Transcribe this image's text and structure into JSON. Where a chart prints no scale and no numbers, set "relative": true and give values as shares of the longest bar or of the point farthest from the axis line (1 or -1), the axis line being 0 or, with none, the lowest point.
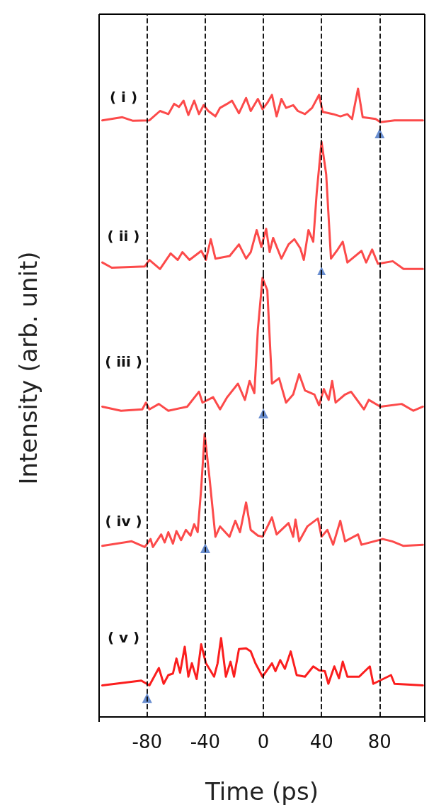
{
  "chart_data": [
    {
      "type": "line",
      "relative": true,
      "xlim": [
        -113,
        111
      ],
      "xticks": [
        -80,
        -40,
        0,
        40,
        80
      ],
      "tick_labels": false,
      "line_style": "solid",
      "ref_lines": [
        {
          "axis": "x",
          "value": -80,
          "color": "#000000",
          "line_style": "dashed"
        },
        {
          "axis": "x",
          "value": -40,
          "color": "#000000",
          "line_style": "dashed"
        },
        {
          "axis": "x",
          "value": 0,
          "color": "#000000",
          "line_style": "dashed"
        },
        {
          "axis": "x",
          "value": 40,
          "color": "#000000",
          "line_style": "dashed"
        },
        {
          "axis": "x",
          "value": 80,
          "color": "#000000",
          "line_style": "dashed"
        }
      ],
      "series": [
        {
          "name": "( i )",
          "color": "#fc4a4a",
          "x": [
            -110.8,
            -97,
            -89.7,
            -78.4,
            -71.1,
            -65.4,
            -61.4,
            -58.1,
            -54.9,
            -51.6,
            -47.6,
            -44.3,
            -41.1,
            -37.9,
            -33,
            -29.8,
            -24.9,
            -21.6,
            -16.8,
            -11.9,
            -8.7,
            -3.8,
            -0.6,
            2.7,
            5.9,
            9.1,
            12.4,
            15.6,
            20.5,
            23.7,
            28.6,
            33.5,
            38.3,
            40.8,
            48,
            53,
            57.8,
            61,
            65.1,
            68.3,
            77.2,
            80.5,
            90.2,
            109.7
          ],
          "values": [
            0.29,
            0.36,
            0.28,
            0.29,
            0.5,
            0.43,
            0.66,
            0.59,
            0.73,
            0.41,
            0.73,
            0.43,
            0.63,
            0.5,
            0.38,
            0.57,
            0.66,
            0.73,
            0.45,
            0.79,
            0.5,
            0.77,
            0.54,
            0.68,
            0.86,
            0.38,
            0.77,
            0.57,
            0.63,
            0.5,
            0.43,
            0.57,
            0.86,
            0.48,
            0.43,
            0.38,
            0.43,
            0.32,
            1,
            0.36,
            0.32,
            0.25,
            0.29,
            0.29
          ]
        },
        {
          "type": "scatter",
          "marker": "triangle",
          "color": "#4472c4",
          "x": [
            80
          ],
          "values": [
            0
          ]
        }
      ]
    },
    {
      "type": "line",
      "relative": true,
      "xlim": [
        -113,
        111
      ],
      "xticks": [
        -80,
        -40,
        0,
        40,
        80
      ],
      "tick_labels": false,
      "line_style": "solid",
      "ref_lines": [
        {
          "axis": "x",
          "value": -80,
          "color": "#000000",
          "line_style": "dashed"
        },
        {
          "axis": "x",
          "value": -40,
          "color": "#000000",
          "line_style": "dashed"
        },
        {
          "axis": "x",
          "value": 0,
          "color": "#000000",
          "line_style": "dashed"
        },
        {
          "axis": "x",
          "value": 40,
          "color": "#000000",
          "line_style": "dashed"
        },
        {
          "axis": "x",
          "value": 80,
          "color": "#000000",
          "line_style": "dashed"
        }
      ],
      "series": [
        {
          "name": "( ii )",
          "color": "#fc4a4a",
          "x": [
            -110.8,
            -104.3,
            -81.6,
            -78.4,
            -71.1,
            -63.8,
            -58.9,
            -55.7,
            -50.8,
            -42.7,
            -39.5,
            -36.2,
            -33,
            -23.2,
            -16.8,
            -11.9,
            -8.7,
            -4.6,
            -1.4,
            1.9,
            4.3,
            6.7,
            12.4,
            17.3,
            21.3,
            25.4,
            27.8,
            31,
            34.3,
            36.7,
            40,
            43.2,
            46.5,
            50.5,
            54.6,
            57.8,
            67.5,
            70.7,
            74.8,
            78.8,
            89,
            96.4,
            109.7
          ],
          "values": [
            0.07,
            0.03,
            0.04,
            0.09,
            0.02,
            0.14,
            0.09,
            0.15,
            0.09,
            0.16,
            0.09,
            0.25,
            0.1,
            0.12,
            0.21,
            0.1,
            0.15,
            0.32,
            0.19,
            0.33,
            0.15,
            0.26,
            0.1,
            0.21,
            0.25,
            0.18,
            0.09,
            0.32,
            0.23,
            0.61,
            1,
            0.75,
            0.1,
            0.16,
            0.23,
            0.07,
            0.16,
            0.07,
            0.17,
            0.06,
            0.08,
            0.02,
            0.02
          ]
        },
        {
          "type": "scatter",
          "marker": "triangle",
          "color": "#4472c4",
          "x": [
            40
          ],
          "values": [
            0
          ]
        }
      ]
    },
    {
      "type": "line",
      "relative": true,
      "xlim": [
        -113,
        111
      ],
      "xticks": [
        -80,
        -40,
        0,
        40,
        80
      ],
      "tick_labels": false,
      "line_style": "solid",
      "ylabel": "Intensity (arb. unit)",
      "ref_lines": [
        {
          "axis": "x",
          "value": -80,
          "color": "#000000",
          "line_style": "dashed"
        },
        {
          "axis": "x",
          "value": -40,
          "color": "#000000",
          "line_style": "dashed"
        },
        {
          "axis": "x",
          "value": 0,
          "color": "#000000",
          "line_style": "dashed"
        },
        {
          "axis": "x",
          "value": 40,
          "color": "#000000",
          "line_style": "dashed"
        },
        {
          "axis": "x",
          "value": 80,
          "color": "#000000",
          "line_style": "dashed"
        }
      ],
      "series": [
        {
          "name": "( iii )",
          "color": "#fc4a4a",
          "x": [
            -110.8,
            -97.9,
            -83.3,
            -80.8,
            -78.4,
            -71.9,
            -65.4,
            -52.4,
            -44.3,
            -41.9,
            -34.6,
            -29.8,
            -24.9,
            -17.5,
            -12.7,
            -9.5,
            -6.2,
            -3.8,
            -0.6,
            2.7,
            5.9,
            10.8,
            15.6,
            20.5,
            24.6,
            28.6,
            35.1,
            38.3,
            41.6,
            44.9,
            47.3,
            49.7,
            56.2,
            60.3,
            69.2,
            72.5,
            80.5,
            95.1,
            103.2,
            109.7
          ],
          "values": [
            0.05,
            0.02,
            0.03,
            0.08,
            0.03,
            0.07,
            0.02,
            0.05,
            0.16,
            0.08,
            0.12,
            0.03,
            0.12,
            0.22,
            0.1,
            0.24,
            0.15,
            0.62,
            1,
            0.91,
            0.22,
            0.26,
            0.08,
            0.14,
            0.29,
            0.17,
            0.14,
            0.06,
            0.18,
            0.1,
            0.24,
            0.08,
            0.14,
            0.16,
            0.03,
            0.1,
            0.05,
            0.07,
            0.02,
            0.05
          ]
        },
        {
          "type": "scatter",
          "marker": "triangle",
          "color": "#4472c4",
          "x": [
            0
          ],
          "values": [
            0
          ]
        }
      ]
    },
    {
      "type": "line",
      "relative": true,
      "xlim": [
        -113,
        111
      ],
      "xticks": [
        -80,
        -40,
        0,
        40,
        80
      ],
      "tick_labels": false,
      "line_style": "solid",
      "ref_lines": [
        {
          "axis": "x",
          "value": -80,
          "color": "#000000",
          "line_style": "dashed"
        },
        {
          "axis": "x",
          "value": -40,
          "color": "#000000",
          "line_style": "dashed"
        },
        {
          "axis": "x",
          "value": 0,
          "color": "#000000",
          "line_style": "dashed"
        },
        {
          "axis": "x",
          "value": 40,
          "color": "#000000",
          "line_style": "dashed"
        },
        {
          "axis": "x",
          "value": 80,
          "color": "#000000",
          "line_style": "dashed"
        }
      ],
      "series": [
        {
          "name": "( iv )",
          "color": "#fc4a4a",
          "x": [
            -110.8,
            -90.6,
            -81.6,
            -77.6,
            -76,
            -70.3,
            -67.9,
            -65.4,
            -62.2,
            -59.8,
            -56.6,
            -53.3,
            -50.1,
            -47.6,
            -45.2,
            -42.8,
            -40.4,
            -37.1,
            -33,
            -29.8,
            -23.3,
            -19.3,
            -16.1,
            -11.9,
            -8.7,
            -3.8,
            -0.6,
            5.9,
            9.1,
            17.3,
            20.5,
            22.1,
            24.6,
            30.2,
            37.5,
            40,
            44,
            48,
            52.9,
            56.2,
            65.1,
            67.5,
            82.1,
            88.6,
            96.4,
            109.7
          ],
          "values": [
            0.02,
            0.06,
            0.01,
            0.08,
            0.01,
            0.12,
            0.05,
            0.14,
            0.04,
            0.15,
            0.07,
            0.16,
            0.11,
            0.21,
            0.14,
            0.52,
            1,
            0.62,
            0.1,
            0.19,
            0.1,
            0.24,
            0.14,
            0.4,
            0.16,
            0.11,
            0.1,
            0.27,
            0.12,
            0.22,
            0.1,
            0.25,
            0.06,
            0.19,
            0.26,
            0.1,
            0.16,
            0.03,
            0.24,
            0.06,
            0.12,
            0.03,
            0.08,
            0.06,
            0.02,
            0.03
          ]
        },
        {
          "type": "scatter",
          "marker": "triangle",
          "color": "#4472c4",
          "x": [
            -40
          ],
          "values": [
            0
          ]
        }
      ]
    },
    {
      "type": "line",
      "relative": true,
      "xlim": [
        -113,
        111
      ],
      "xticks": [
        -80,
        -40,
        0,
        40,
        80
      ],
      "tick_labels": "x",
      "line_style": "solid",
      "xlabel": "Time (ps)",
      "ref_lines": [
        {
          "axis": "x",
          "value": -80,
          "color": "#000000",
          "line_style": "dashed"
        },
        {
          "axis": "x",
          "value": -40,
          "color": "#000000",
          "line_style": "dashed"
        },
        {
          "axis": "x",
          "value": 0,
          "color": "#000000",
          "line_style": "dashed"
        },
        {
          "axis": "x",
          "value": 40,
          "color": "#000000",
          "line_style": "dashed"
        },
        {
          "axis": "x",
          "value": 80,
          "color": "#000000",
          "line_style": "dashed"
        }
      ],
      "series": [
        {
          "name": "( v )",
          "color": "#fb1e1e",
          "x": [
            -110.8,
            -84,
            -78.4,
            -71.9,
            -68.6,
            -65.4,
            -62.2,
            -59.8,
            -57.3,
            -54.1,
            -51.6,
            -49.2,
            -45.9,
            -42.8,
            -39.5,
            -33.9,
            -31.5,
            -29.1,
            -25.8,
            -22.6,
            -20.2,
            -16.8,
            -11.9,
            -8.7,
            -5.5,
            -0.6,
            5.9,
            8.3,
            11.6,
            14.8,
            18.8,
            22.9,
            28.6,
            34.3,
            38.3,
            42.3,
            44.7,
            48.8,
            52,
            54.6,
            57.8,
            65.9,
            73.2,
            75.6,
            87.8,
            90.2,
            109.7
          ],
          "values": [
            0.4,
            0.46,
            0.4,
            0.62,
            0.42,
            0.53,
            0.55,
            0.74,
            0.56,
            0.89,
            0.51,
            0.68,
            0.48,
            0.92,
            0.68,
            0.51,
            0.68,
            1,
            0.51,
            0.7,
            0.51,
            0.86,
            0.87,
            0.83,
            0.68,
            0.51,
            0.68,
            0.58,
            0.72,
            0.61,
            0.83,
            0.53,
            0.51,
            0.64,
            0.59,
            0.58,
            0.42,
            0.64,
            0.49,
            0.7,
            0.51,
            0.51,
            0.64,
            0.42,
            0.53,
            0.42,
            0.4
          ]
        },
        {
          "type": "scatter",
          "marker": "triangle",
          "color": "#4472c4",
          "x": [
            -80
          ],
          "values": [
            0.24
          ]
        }
      ]
    }
  ]
}
